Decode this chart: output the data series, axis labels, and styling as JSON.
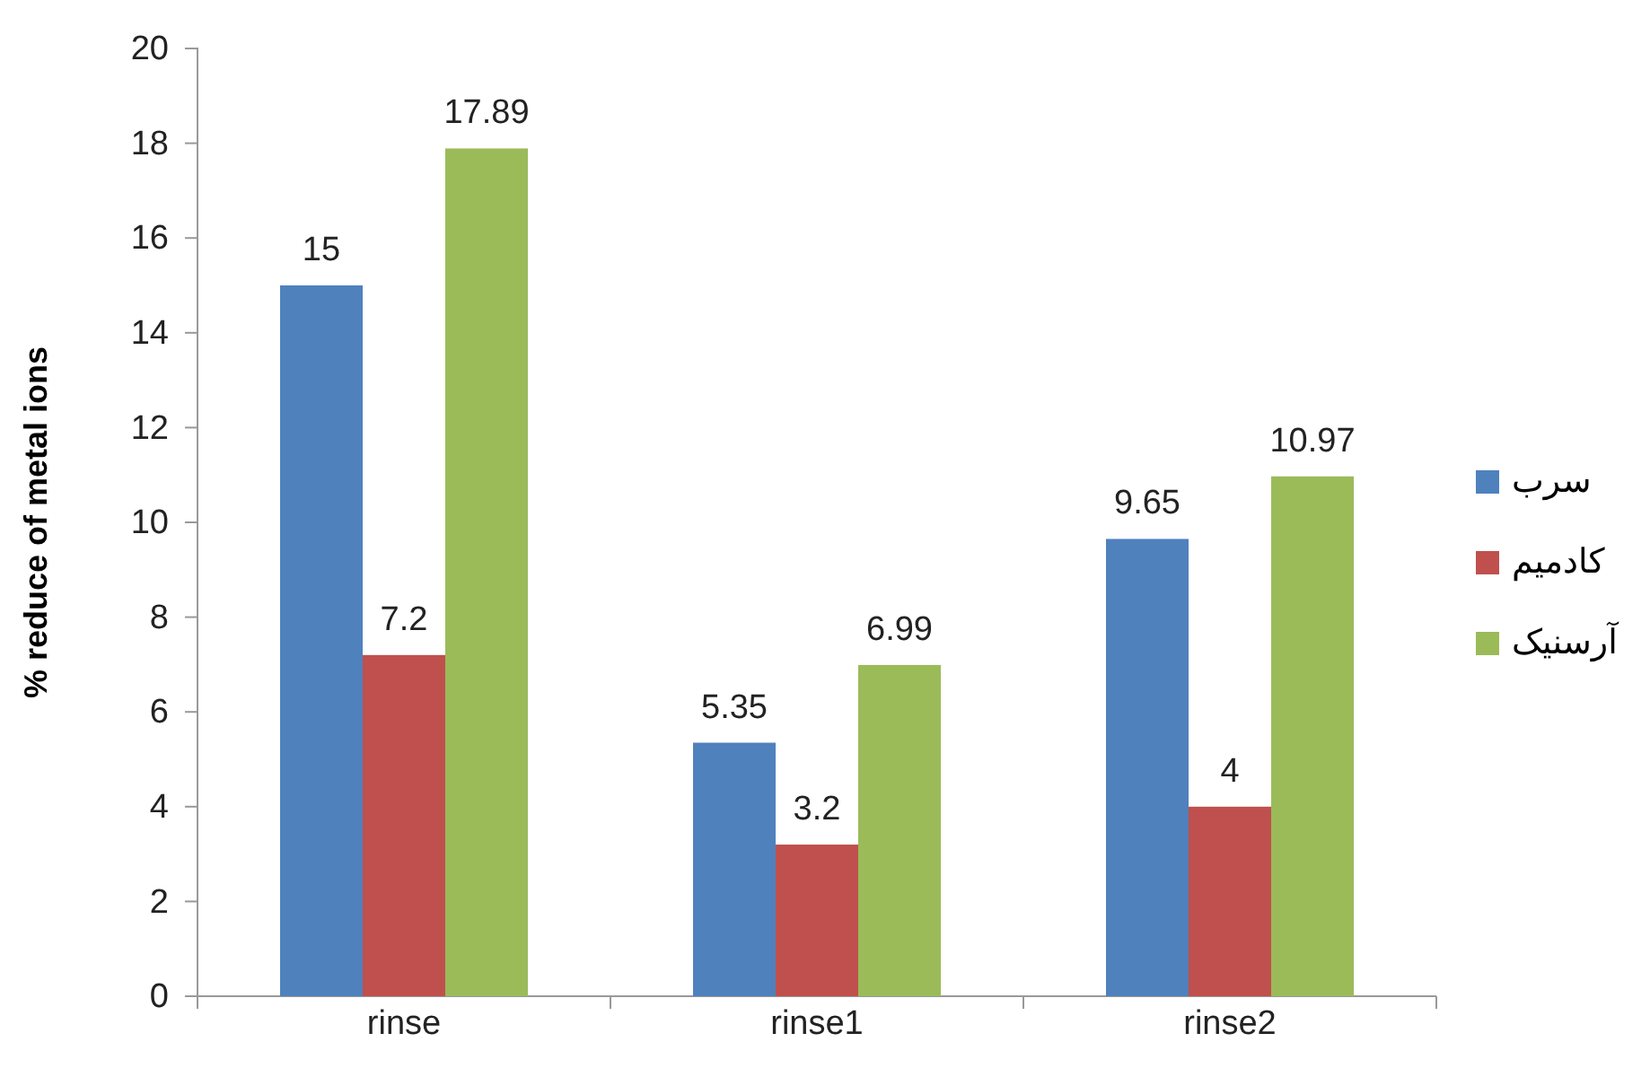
{
  "chart_data": {
    "type": "bar",
    "ylabel": "% reduce of metal ions",
    "categories": [
      "rinse",
      "rinse1",
      "rinse2"
    ],
    "series": [
      {
        "name": "سرب",
        "color": "#4f81bd",
        "values": [
          15,
          5.35,
          9.65
        ]
      },
      {
        "name": "کادمیم",
        "color": "#c0504d",
        "values": [
          7.2,
          3.2,
          4
        ]
      },
      {
        "name": "آرسنیک",
        "color": "#9bbb59",
        "values": [
          17.89,
          6.99,
          10.97
        ]
      }
    ],
    "ylim": [
      0,
      20
    ],
    "yticks": [
      0,
      2,
      4,
      6,
      8,
      10,
      12,
      14,
      16,
      18,
      20
    ],
    "data_labels": true,
    "grid": false,
    "legend": "right"
  }
}
